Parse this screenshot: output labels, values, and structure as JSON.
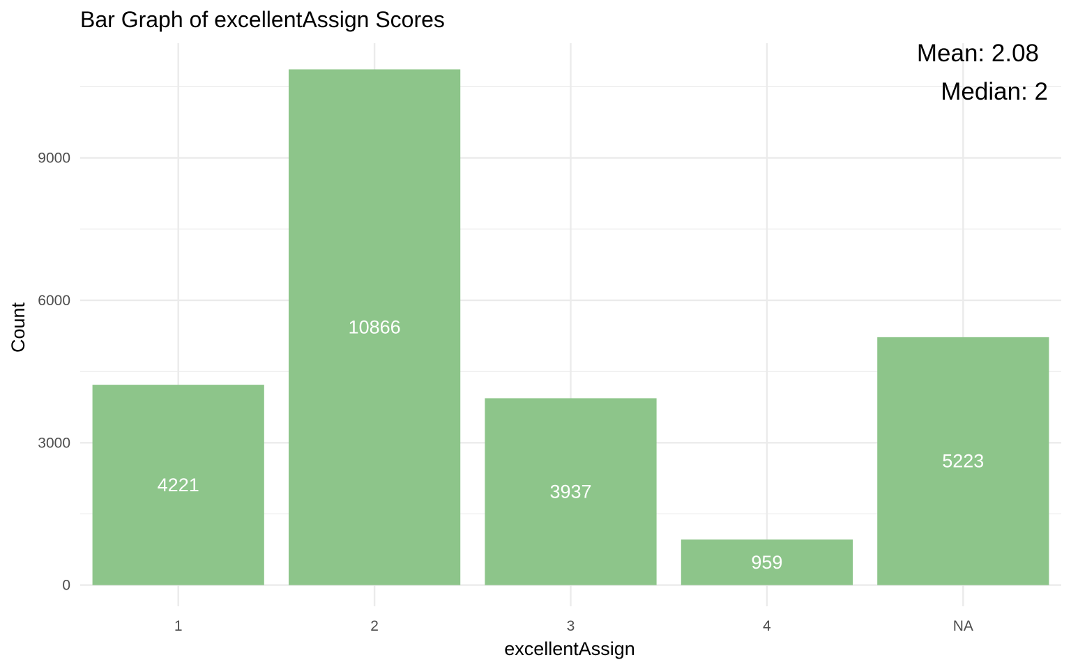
{
  "chart_data": {
    "type": "bar",
    "title": "Bar Graph of excellentAssign Scores",
    "xlabel": "excellentAssign",
    "ylabel": "Count",
    "categories": [
      "1",
      "2",
      "3",
      "4",
      "NA"
    ],
    "values": [
      4221,
      10866,
      3937,
      959,
      5223
    ],
    "data_labels": [
      "4221",
      "10866",
      "3937",
      "959",
      "5223"
    ],
    "yticks": [
      0,
      3000,
      6000,
      9000
    ],
    "ytick_labels": [
      "0",
      "3000",
      "6000",
      "9000"
    ],
    "ylim": [
      0,
      11400
    ],
    "grid": true,
    "annotations": [
      "Mean: 2.08",
      "Median: 2"
    ],
    "colors": {
      "bar": "#8DC58A",
      "grid": "#EBEBEB",
      "background": "#FFFFFF"
    }
  }
}
